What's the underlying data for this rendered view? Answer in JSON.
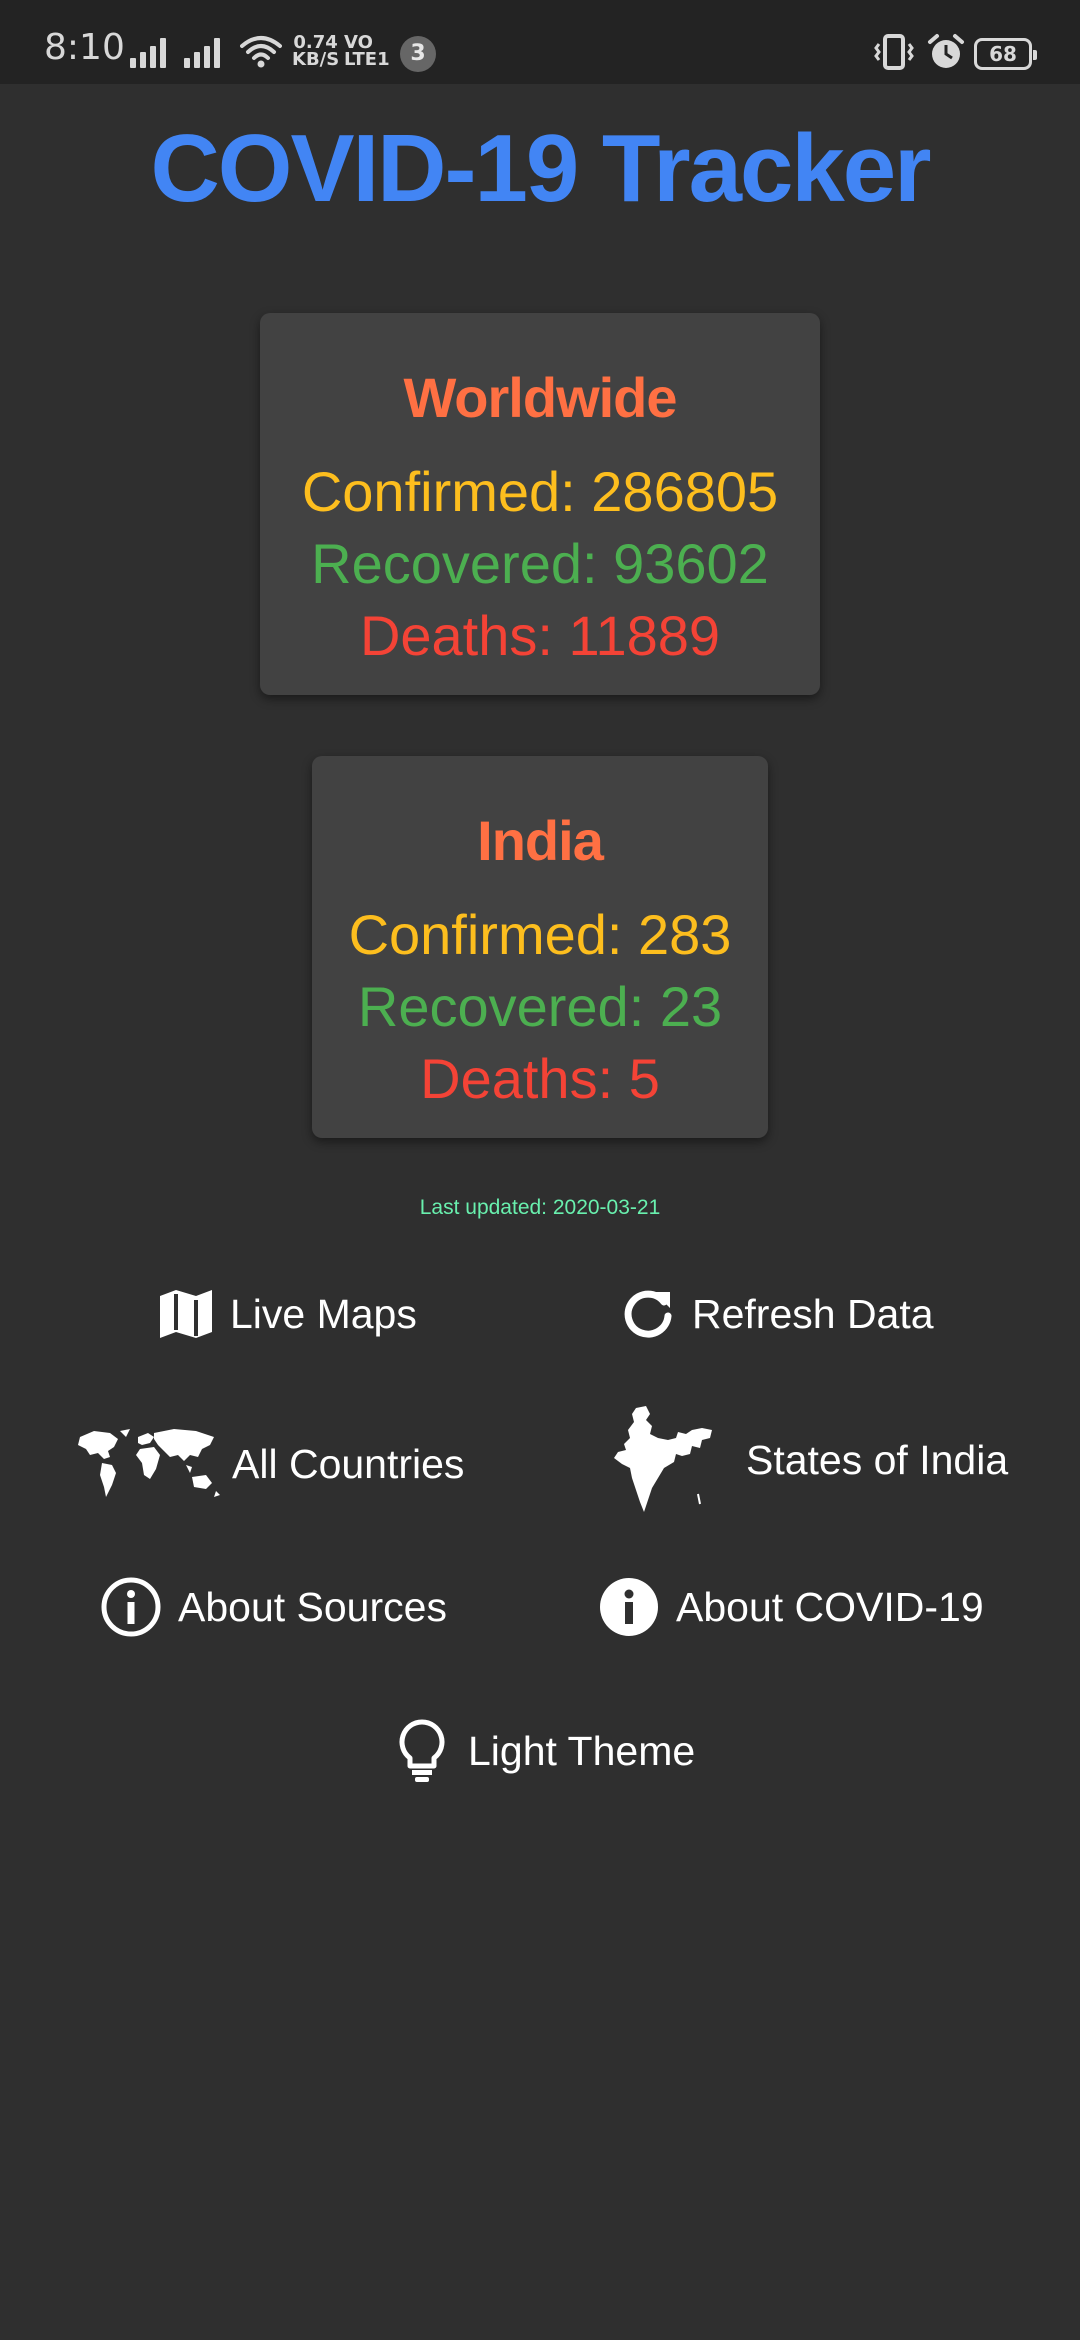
{
  "status_bar": {
    "time": "8:10",
    "network_speed_value": "0.74",
    "network_speed_unit": "KB/S",
    "volte_top": "VO",
    "volte_bottom": "LTE1",
    "notification_count": "3",
    "battery": "68"
  },
  "app": {
    "title": "COVID-19 Tracker"
  },
  "worldwide": {
    "heading": "Worldwide",
    "confirmed": "Confirmed: 286805",
    "recovered": "Recovered: 93602",
    "deaths": "Deaths: 11889"
  },
  "india": {
    "heading": "India",
    "confirmed": "Confirmed: 283",
    "recovered": "Recovered: 23",
    "deaths": "Deaths: 5"
  },
  "last_updated": "Last updated: 2020-03-21",
  "actions": {
    "live_maps": "Live Maps",
    "refresh_data": "Refresh Data",
    "all_countries": "All Countries",
    "states_of_india": "States of India",
    "about_sources": "About Sources",
    "about_covid": "About COVID-19",
    "light_theme": "Light Theme"
  },
  "colors": {
    "title": "#4285f4",
    "heading": "#ff7043",
    "confirmed": "#fdbe1e",
    "recovered": "#4caf50",
    "deaths": "#f44336",
    "updated": "#69f0ae",
    "background": "#2f2f2f",
    "card": "#424242"
  },
  "icons": [
    "map-icon",
    "refresh-icon",
    "world-map-icon",
    "india-map-icon",
    "info-outline-icon",
    "info-filled-icon",
    "lightbulb-icon"
  ]
}
